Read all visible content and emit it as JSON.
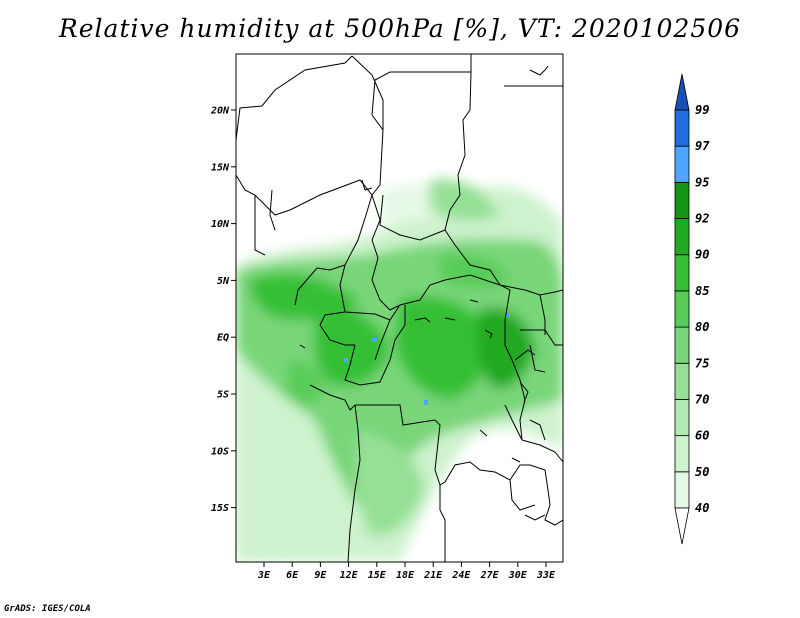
{
  "title": "Relative humidity at 500hPa [%], VT: 2020102506",
  "credit": "GrADS: IGES/COLA",
  "map": {
    "lat_ticks": [
      "20N",
      "15N",
      "10N",
      "5N",
      "EQ",
      "5S",
      "10S",
      "15S"
    ],
    "lon_ticks": [
      "3E",
      "6E",
      "9E",
      "12E",
      "15E",
      "18E",
      "21E",
      "24E",
      "27E",
      "30E",
      "33E"
    ]
  },
  "colorbar": {
    "levels": [
      "40",
      "50",
      "60",
      "70",
      "75",
      "80",
      "85",
      "90",
      "92",
      "95",
      "97",
      "99"
    ],
    "colors": [
      "#ffffff",
      "#e6f8e6",
      "#cdf2cd",
      "#b2eab2",
      "#96e096",
      "#78d678",
      "#58cc58",
      "#36bf36",
      "#22a922",
      "#149614",
      "#4da6ff",
      "#1f6fe0",
      "#1a4fb8"
    ]
  }
}
